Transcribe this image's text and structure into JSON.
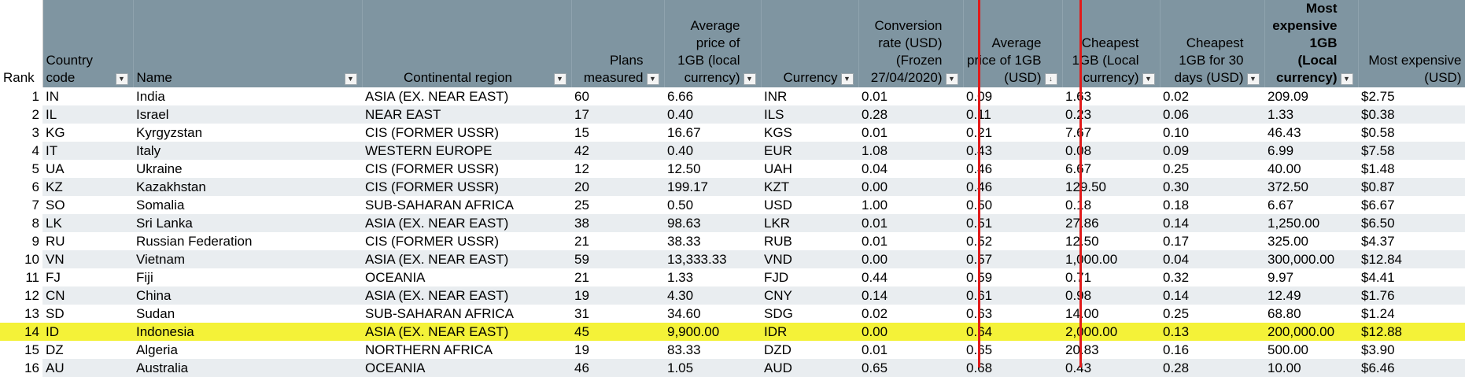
{
  "headers": {
    "rank": "Rank",
    "country_code": "Country code",
    "name": "Name",
    "region": "Continental region",
    "plans": "Plans measured",
    "avg_local": "Average price of 1GB (local currency)",
    "currency": "Currency",
    "conversion": "Conversion rate (USD) (Frozen 27/04/2020)",
    "avg_usd": "Average price of 1GB (USD)",
    "cheapest_local": "Cheapest 1GB (Local currency)",
    "cheapest_usd": "Cheapest 1GB for 30 days (USD)",
    "most_exp_local": "Most expensive 1GB (Local currency)",
    "most_exp_usd": "Most expensive (USD)"
  },
  "filter_icon": "dropdown-arrow-icon",
  "sort_icon": "sort-descending-filter-icon",
  "highlight_color": "#f4f238",
  "divider_color": "#e11b1b",
  "header_color": "#7f95a1",
  "rows": [
    {
      "rank": "1",
      "code": "IN",
      "name": "India",
      "region": "ASIA (EX. NEAR EAST)",
      "plans": "60",
      "avg_local": "6.66",
      "currency": "INR",
      "conversion": "0.01",
      "avg_usd": "0.09",
      "cheapest_local": "1.63",
      "cheapest_usd": "0.02",
      "most_local": "209.09",
      "most_usd": "$2.75"
    },
    {
      "rank": "2",
      "code": "IL",
      "name": "Israel",
      "region": "NEAR EAST",
      "plans": "17",
      "avg_local": "0.40",
      "currency": "ILS",
      "conversion": "0.28",
      "avg_usd": "0.11",
      "cheapest_local": "0.23",
      "cheapest_usd": "0.06",
      "most_local": "1.33",
      "most_usd": "$0.38"
    },
    {
      "rank": "3",
      "code": "KG",
      "name": "Kyrgyzstan",
      "region": "CIS (FORMER USSR)",
      "plans": "15",
      "avg_local": "16.67",
      "currency": "KGS",
      "conversion": "0.01",
      "avg_usd": "0.21",
      "cheapest_local": "7.67",
      "cheapest_usd": "0.10",
      "most_local": "46.43",
      "most_usd": "$0.58"
    },
    {
      "rank": "4",
      "code": "IT",
      "name": "Italy",
      "region": "WESTERN EUROPE",
      "plans": "42",
      "avg_local": "0.40",
      "currency": "EUR",
      "conversion": "1.08",
      "avg_usd": "0.43",
      "cheapest_local": "0.08",
      "cheapest_usd": "0.09",
      "most_local": "6.99",
      "most_usd": "$7.58"
    },
    {
      "rank": "5",
      "code": "UA",
      "name": "Ukraine",
      "region": "CIS (FORMER USSR)",
      "plans": "12",
      "avg_local": "12.50",
      "currency": "UAH",
      "conversion": "0.04",
      "avg_usd": "0.46",
      "cheapest_local": "6.67",
      "cheapest_usd": "0.25",
      "most_local": "40.00",
      "most_usd": "$1.48"
    },
    {
      "rank": "6",
      "code": "KZ",
      "name": "Kazakhstan",
      "region": "CIS (FORMER USSR)",
      "plans": "20",
      "avg_local": "199.17",
      "currency": "KZT",
      "conversion": "0.00",
      "avg_usd": "0.46",
      "cheapest_local": "129.50",
      "cheapest_usd": "0.30",
      "most_local": "372.50",
      "most_usd": "$0.87"
    },
    {
      "rank": "7",
      "code": "SO",
      "name": "Somalia",
      "region": "SUB-SAHARAN AFRICA",
      "plans": "25",
      "avg_local": "0.50",
      "currency": "USD",
      "conversion": "1.00",
      "avg_usd": "0.50",
      "cheapest_local": "0.18",
      "cheapest_usd": "0.18",
      "most_local": "6.67",
      "most_usd": "$6.67"
    },
    {
      "rank": "8",
      "code": "LK",
      "name": "Sri Lanka",
      "region": "ASIA (EX. NEAR EAST)",
      "plans": "38",
      "avg_local": "98.63",
      "currency": "LKR",
      "conversion": "0.01",
      "avg_usd": "0.51",
      "cheapest_local": "27.86",
      "cheapest_usd": "0.14",
      "most_local": "1,250.00",
      "most_usd": "$6.50"
    },
    {
      "rank": "9",
      "code": "RU",
      "name": "Russian Federation",
      "region": "CIS (FORMER USSR)",
      "plans": "21",
      "avg_local": "38.33",
      "currency": "RUB",
      "conversion": "0.01",
      "avg_usd": "0.52",
      "cheapest_local": "12.50",
      "cheapest_usd": "0.17",
      "most_local": "325.00",
      "most_usd": "$4.37"
    },
    {
      "rank": "10",
      "code": "VN",
      "name": "Vietnam",
      "region": "ASIA (EX. NEAR EAST)",
      "plans": "59",
      "avg_local": "13,333.33",
      "currency": "VND",
      "conversion": "0.00",
      "avg_usd": "0.57",
      "cheapest_local": "1,000.00",
      "cheapest_usd": "0.04",
      "most_local": "300,000.00",
      "most_usd": "$12.84"
    },
    {
      "rank": "11",
      "code": "FJ",
      "name": "Fiji",
      "region": "OCEANIA",
      "plans": "21",
      "avg_local": "1.33",
      "currency": "FJD",
      "conversion": "0.44",
      "avg_usd": "0.59",
      "cheapest_local": "0.71",
      "cheapest_usd": "0.32",
      "most_local": "9.97",
      "most_usd": "$4.41"
    },
    {
      "rank": "12",
      "code": "CN",
      "name": "China",
      "region": "ASIA (EX. NEAR EAST)",
      "plans": "19",
      "avg_local": "4.30",
      "currency": "CNY",
      "conversion": "0.14",
      "avg_usd": "0.61",
      "cheapest_local": "0.98",
      "cheapest_usd": "0.14",
      "most_local": "12.49",
      "most_usd": "$1.76"
    },
    {
      "rank": "13",
      "code": "SD",
      "name": "Sudan",
      "region": "SUB-SAHARAN AFRICA",
      "plans": "31",
      "avg_local": "34.60",
      "currency": "SDG",
      "conversion": "0.02",
      "avg_usd": "0.63",
      "cheapest_local": "14.00",
      "cheapest_usd": "0.25",
      "most_local": "68.80",
      "most_usd": "$1.24"
    },
    {
      "rank": "14",
      "code": "ID",
      "name": "Indonesia",
      "region": "ASIA (EX. NEAR EAST)",
      "plans": "45",
      "avg_local": "9,900.00",
      "currency": "IDR",
      "conversion": "0.00",
      "avg_usd": "0.64",
      "cheapest_local": "2,000.00",
      "cheapest_usd": "0.13",
      "most_local": "200,000.00",
      "most_usd": "$12.88",
      "highlighted": true
    },
    {
      "rank": "15",
      "code": "DZ",
      "name": "Algeria",
      "region": "NORTHERN AFRICA",
      "plans": "19",
      "avg_local": "83.33",
      "currency": "DZD",
      "conversion": "0.01",
      "avg_usd": "0.65",
      "cheapest_local": "20.83",
      "cheapest_usd": "0.16",
      "most_local": "500.00",
      "most_usd": "$3.90"
    },
    {
      "rank": "16",
      "code": "AU",
      "name": "Australia",
      "region": "OCEANIA",
      "plans": "46",
      "avg_local": "1.05",
      "currency": "AUD",
      "conversion": "0.65",
      "avg_usd": "0.68",
      "cheapest_local": "0.43",
      "cheapest_usd": "0.28",
      "most_local": "10.00",
      "most_usd": "$6.46"
    }
  ]
}
